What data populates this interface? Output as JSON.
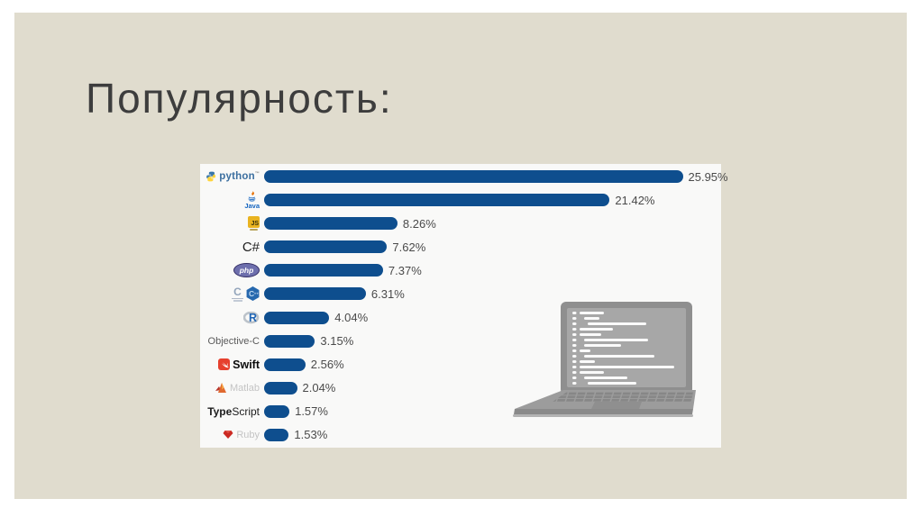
{
  "slide": {
    "title": "Популярность:"
  },
  "colors": {
    "slide_bg": "#e0dcce",
    "panel_bg": "#f9f9f8",
    "bar_color": "#0e4e8e",
    "title_color": "#3d3d3d",
    "value_color": "#4a4a4a"
  },
  "chart_data": {
    "type": "bar",
    "orientation": "horizontal",
    "title": "",
    "xlabel": "",
    "ylabel": "",
    "grid": false,
    "legend": "none",
    "xlim": [
      0,
      26.5
    ],
    "categories": [
      "Python",
      "Java",
      "JavaScript",
      "C#",
      "PHP",
      "C/C++",
      "R",
      "Objective-C",
      "Swift",
      "Matlab",
      "TypeScript",
      "Ruby"
    ],
    "values": [
      25.95,
      21.42,
      8.26,
      7.62,
      7.37,
      6.31,
      4.04,
      3.15,
      2.56,
      2.04,
      1.57,
      1.53
    ],
    "value_labels": [
      "25.95%",
      "21.42%",
      "8.26%",
      "7.62%",
      "7.37%",
      "6.31%",
      "4.04%",
      "3.15%",
      "2.56%",
      "2.04%",
      "1.57%",
      "1.53%"
    ],
    "bar_color": "#0e4e8e"
  },
  "labels": {
    "python": "python",
    "python_tm": "™",
    "java": "Java",
    "js": "JS",
    "csharp": "C#",
    "php": "php",
    "c": "C",
    "cpp_c": "C",
    "cpp_pp": "++",
    "r": "R",
    "objc": "Objective-C",
    "swift": "Swift",
    "matlab": "Matlab",
    "ts_bold": "Type",
    "ts_rest": "Script",
    "ruby": "Ruby"
  }
}
